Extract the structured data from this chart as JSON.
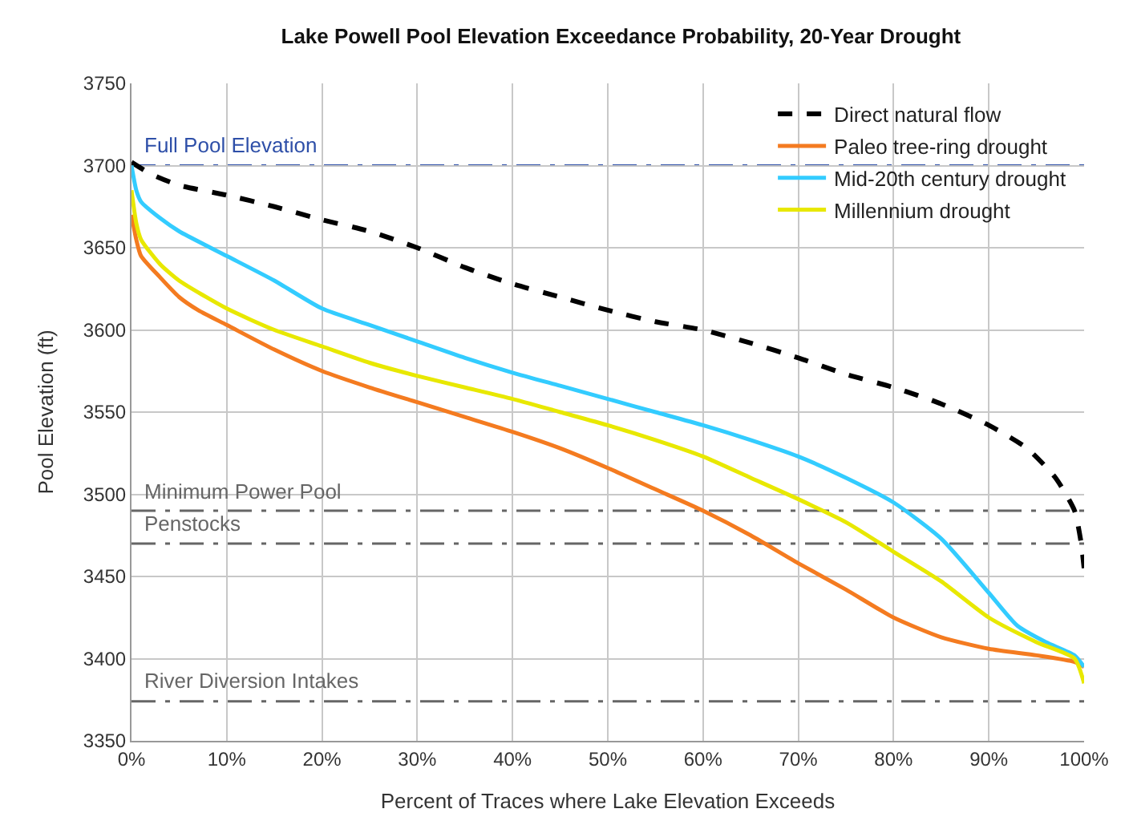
{
  "chart_data": {
    "type": "line",
    "title": "Lake Powell Pool Elevation Exceedance Probability, 20-Year Drought",
    "xlabel": "Percent of Traces where Lake Elevation Exceeds",
    "ylabel": "Pool Elevation (ft)",
    "xlim": [
      0,
      100
    ],
    "ylim": [
      3350,
      3750
    ],
    "xticks": [
      {
        "value": 0,
        "label": "0%"
      },
      {
        "value": 10,
        "label": "10%"
      },
      {
        "value": 20,
        "label": "20%"
      },
      {
        "value": 30,
        "label": "30%"
      },
      {
        "value": 40,
        "label": "40%"
      },
      {
        "value": 50,
        "label": "50%"
      },
      {
        "value": 60,
        "label": "60%"
      },
      {
        "value": 70,
        "label": "70%"
      },
      {
        "value": 80,
        "label": "80%"
      },
      {
        "value": 90,
        "label": "90%"
      },
      {
        "value": 100,
        "label": "100%"
      }
    ],
    "yticks": [
      3350,
      3400,
      3450,
      3500,
      3550,
      3600,
      3650,
      3700,
      3750
    ],
    "grid": true,
    "legend": "top right",
    "marker": "none",
    "series": [
      {
        "name": "Direct natural flow",
        "color": "#000000",
        "line_style": "dashed",
        "x": [
          0,
          2,
          5,
          10,
          15,
          20,
          25,
          30,
          35,
          40,
          45,
          50,
          55,
          60,
          65,
          70,
          75,
          80,
          85,
          90,
          94,
          97,
          99,
          99.7,
          100
        ],
        "values": [
          3702,
          3695,
          3688,
          3682,
          3675,
          3667,
          3660,
          3650,
          3638,
          3628,
          3620,
          3612,
          3605,
          3600,
          3592,
          3583,
          3573,
          3565,
          3555,
          3542,
          3528,
          3510,
          3490,
          3470,
          3455
        ]
      },
      {
        "name": "Paleo tree-ring drought",
        "color": "#f47b20",
        "x": [
          0,
          0.5,
          1,
          3,
          5,
          7,
          10,
          15,
          20,
          25,
          30,
          35,
          40,
          45,
          50,
          55,
          60,
          65,
          70,
          75,
          80,
          85,
          90,
          95,
          99,
          100
        ],
        "values": [
          3670,
          3655,
          3645,
          3632,
          3620,
          3612,
          3603,
          3588,
          3575,
          3565,
          3556,
          3547,
          3538,
          3528,
          3516,
          3503,
          3490,
          3475,
          3458,
          3442,
          3425,
          3413,
          3406,
          3402,
          3398,
          3395
        ]
      },
      {
        "name": "Mid-20th century drought",
        "color": "#33ccff",
        "x": [
          0,
          0.5,
          1,
          3,
          5,
          10,
          15,
          20,
          25,
          30,
          35,
          40,
          45,
          50,
          55,
          60,
          65,
          70,
          75,
          80,
          85,
          90,
          93,
          96,
          99,
          100
        ],
        "values": [
          3700,
          3685,
          3678,
          3668,
          3660,
          3645,
          3630,
          3613,
          3603,
          3593,
          3583,
          3574,
          3566,
          3558,
          3550,
          3542,
          3533,
          3523,
          3510,
          3495,
          3473,
          3440,
          3420,
          3410,
          3402,
          3395
        ]
      },
      {
        "name": "Millennium drought",
        "color": "#e8e800",
        "x": [
          0,
          0.5,
          1,
          3,
          5,
          10,
          15,
          20,
          25,
          30,
          35,
          40,
          45,
          50,
          55,
          60,
          65,
          70,
          75,
          80,
          85,
          90,
          95,
          99,
          100
        ],
        "values": [
          3685,
          3665,
          3655,
          3640,
          3630,
          3613,
          3600,
          3590,
          3580,
          3572,
          3565,
          3558,
          3550,
          3542,
          3533,
          3523,
          3510,
          3497,
          3483,
          3465,
          3447,
          3425,
          3410,
          3400,
          3385
        ]
      }
    ],
    "ref_lines": [
      {
        "axis": "y",
        "value": 3700,
        "label": "Full Pool Elevation",
        "color": "#2e4fa8",
        "line_style": "dashed"
      },
      {
        "axis": "y",
        "value": 3490,
        "label": "Minimum Power Pool",
        "color": "#666666",
        "line_style": "dashed"
      },
      {
        "axis": "y",
        "value": 3470,
        "label": "Penstocks",
        "color": "#666666",
        "line_style": "dashed"
      },
      {
        "axis": "y",
        "value": 3374,
        "label": "River Diversion Intakes",
        "color": "#666666",
        "line_style": "dashed"
      }
    ]
  }
}
